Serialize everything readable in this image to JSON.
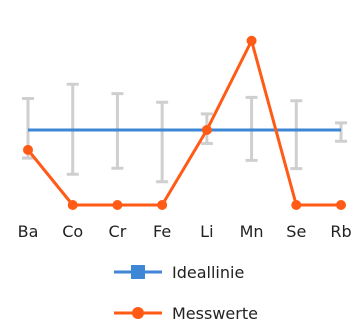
{
  "chart_data": {
    "type": "line",
    "categories": [
      "Ba",
      "Co",
      "Cr",
      "Fe",
      "Li",
      "Mn",
      "Se",
      "Rb"
    ],
    "ylim": [
      0,
      5
    ],
    "grid": false,
    "legend_position": "bottom",
    "series": [
      {
        "name": "Ideallinie",
        "color": "#3d87d6",
        "marker": "square",
        "values": [
          2,
          2,
          2,
          2,
          2,
          2,
          2,
          2
        ],
        "error_low": [
          1.25,
          0.82,
          0.98,
          0.62,
          1.64,
          1.19,
          0.97,
          1.7
        ],
        "error_high": [
          2.84,
          3.22,
          2.97,
          2.74,
          2.43,
          2.87,
          2.78,
          2.19
        ],
        "error_color": "#cfcfcf"
      },
      {
        "name": "Messwerte",
        "color": "#ff5a16",
        "marker": "circle",
        "values": [
          1.47,
          0,
          0,
          0,
          2,
          4.38,
          0,
          0
        ]
      }
    ]
  }
}
